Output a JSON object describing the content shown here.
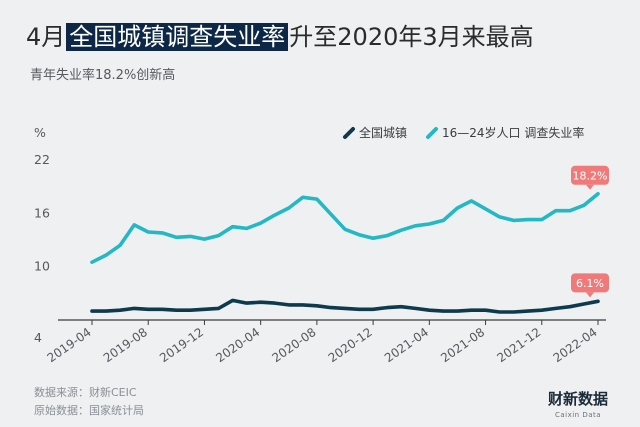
{
  "header": {
    "title_prefix": "4月",
    "title_highlight": "全国城镇调查失业率",
    "title_suffix": "升至2020年3月来最高",
    "subtitle": "青年失业率18.2%创新高"
  },
  "footer": {
    "source": "数据来源：财新CEIC",
    "origin": "原始数据：国家统计局"
  },
  "logo": {
    "text": "财新数据",
    "sub": "Caixin Data"
  },
  "colors": {
    "national": "#0e3a4d",
    "youth": "#22b8c4",
    "callout": "#f07a7a",
    "title_highlight_bg": "#0d2846"
  },
  "chart_data": {
    "type": "line",
    "unit": "%",
    "ylim": [
      4,
      22
    ],
    "yticks": [
      4,
      10,
      16,
      22
    ],
    "x_tick_labels": [
      "2019-04",
      "2019-08",
      "2019-12",
      "2020-04",
      "2020-08",
      "2020-12",
      "2021-04",
      "2021-08",
      "2021-12",
      "2022-04"
    ],
    "x": [
      "2019-04",
      "2019-05",
      "2019-06",
      "2019-07",
      "2019-08",
      "2019-09",
      "2019-10",
      "2019-11",
      "2019-12",
      "2020-01",
      "2020-02",
      "2020-03",
      "2020-04",
      "2020-05",
      "2020-06",
      "2020-07",
      "2020-08",
      "2020-09",
      "2020-10",
      "2020-11",
      "2020-12",
      "2021-01",
      "2021-02",
      "2021-03",
      "2021-04",
      "2021-05",
      "2021-06",
      "2021-07",
      "2021-08",
      "2021-09",
      "2021-10",
      "2021-11",
      "2021-12",
      "2022-01",
      "2022-02",
      "2022-03",
      "2022-04"
    ],
    "series": [
      {
        "name": "全国城镇",
        "values": [
          5.0,
          5.0,
          5.1,
          5.3,
          5.2,
          5.2,
          5.1,
          5.1,
          5.2,
          5.3,
          6.2,
          5.9,
          6.0,
          5.9,
          5.7,
          5.7,
          5.6,
          5.4,
          5.3,
          5.2,
          5.2,
          5.4,
          5.5,
          5.3,
          5.1,
          5.0,
          5.0,
          5.1,
          5.1,
          4.9,
          4.9,
          5.0,
          5.1,
          5.3,
          5.5,
          5.8,
          6.1
        ],
        "callout": "6.1%"
      },
      {
        "name": "16—24岁人口 调查失业率",
        "values": [
          10.5,
          11.3,
          12.4,
          14.7,
          13.9,
          13.8,
          13.3,
          13.4,
          13.1,
          13.5,
          14.5,
          14.3,
          14.9,
          15.8,
          16.6,
          17.8,
          17.6,
          15.9,
          14.2,
          13.6,
          13.2,
          13.5,
          14.1,
          14.6,
          14.8,
          15.2,
          16.6,
          17.4,
          16.5,
          15.6,
          15.2,
          15.3,
          15.3,
          16.3,
          16.3,
          16.9,
          18.2
        ],
        "callout": "18.2%"
      }
    ]
  }
}
